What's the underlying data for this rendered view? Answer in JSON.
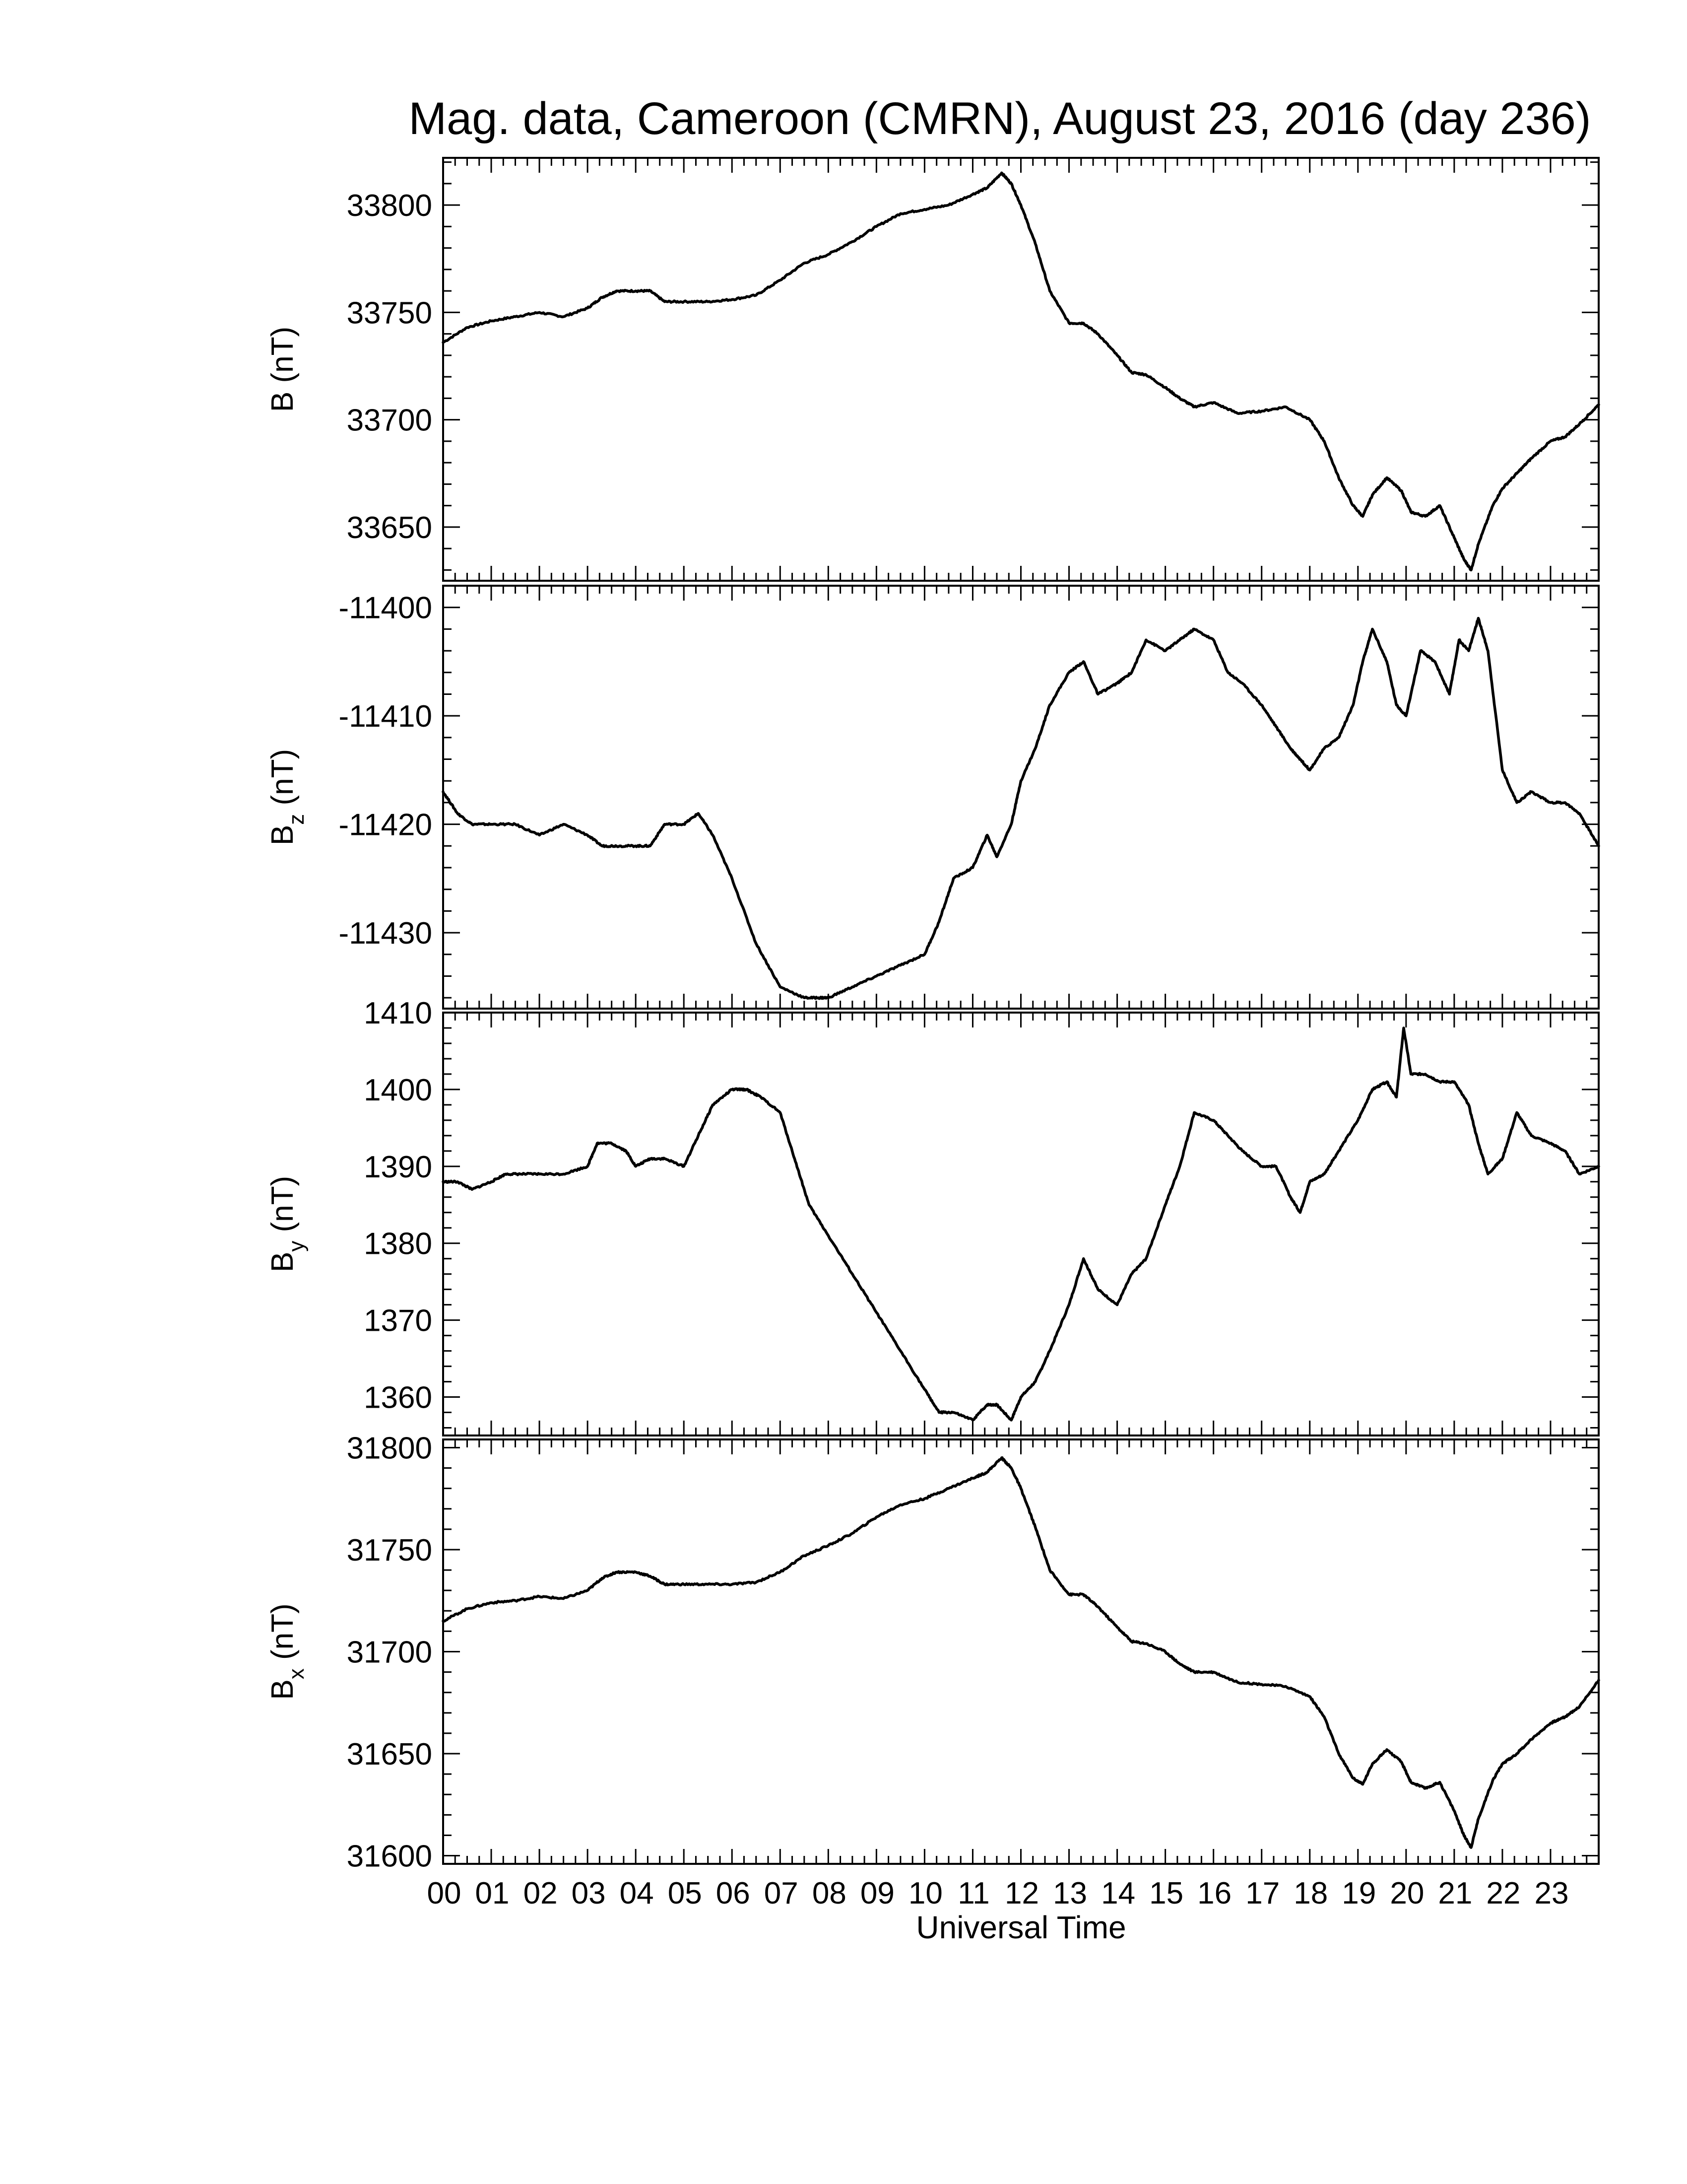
{
  "title": "Mag. data, Cameroon (CMRN), August 23, 2016 (day 236)",
  "xlabel": "Universal Time",
  "colors": {
    "line": "#000000",
    "background": "#ffffff"
  },
  "chart_data": [
    {
      "type": "line",
      "ylabel": "B (nT)",
      "ylabel_main": "B (nT)",
      "ylabel_sub": "",
      "ylim": [
        33625,
        33822
      ],
      "yticks": [
        33650,
        33700,
        33750,
        33800
      ],
      "xlim": [
        0,
        24
      ],
      "x": [
        0,
        0.5,
        1,
        1.5,
        2,
        2.5,
        3,
        3.3,
        3.6,
        4,
        4.3,
        4.6,
        5,
        5.5,
        6,
        6.5,
        7,
        7.5,
        8,
        8.5,
        9,
        9.5,
        10,
        10.5,
        11,
        11.3,
        11.6,
        11.8,
        12,
        12.3,
        12.6,
        13,
        13.3,
        13.6,
        14,
        14.3,
        14.6,
        15,
        15.3,
        15.6,
        16,
        16.5,
        17,
        17.5,
        18,
        18.3,
        18.6,
        18.9,
        19.1,
        19.3,
        19.6,
        19.9,
        20.1,
        20.4,
        20.7,
        21,
        21.2,
        21.35,
        21.5,
        21.8,
        22,
        22.3,
        22.6,
        23,
        23.3,
        23.6,
        24
      ],
      "values": [
        33736,
        33743,
        33746,
        33748,
        33750,
        33748,
        33752,
        33757,
        33760,
        33760,
        33760,
        33755,
        33755,
        33755,
        33756,
        33758,
        33765,
        33773,
        33777,
        33783,
        33790,
        33796,
        33798,
        33800,
        33805,
        33808,
        33815,
        33810,
        33800,
        33782,
        33760,
        33745,
        33745,
        33740,
        33730,
        33722,
        33721,
        33715,
        33710,
        33706,
        33708,
        33703,
        33704,
        33706,
        33700,
        33690,
        33673,
        33660,
        33655,
        33665,
        33673,
        33667,
        33657,
        33655,
        33660,
        33645,
        33635,
        33630,
        33642,
        33660,
        33668,
        33675,
        33682,
        33690,
        33692,
        33698,
        33707
      ]
    },
    {
      "type": "line",
      "ylabel": "Bz (nT)",
      "ylabel_main": "B",
      "ylabel_sub": "z",
      "ylim": [
        -11437,
        -11398
      ],
      "yticks": [
        -11400,
        -11410,
        -11420,
        -11430
      ],
      "yticks_suffix_label": "11410",
      "xlim": [
        0,
        24
      ],
      "x": [
        0,
        0.3,
        0.6,
        1,
        1.5,
        2,
        2.5,
        3,
        3.3,
        3.6,
        4,
        4.3,
        4.6,
        5,
        5.3,
        5.6,
        6,
        6.5,
        7,
        7.5,
        7.8,
        8,
        8.5,
        9,
        9.5,
        10,
        10.3,
        10.6,
        11,
        11.3,
        11.5,
        11.8,
        12,
        12.3,
        12.6,
        13,
        13.3,
        13.6,
        14,
        14.3,
        14.6,
        15,
        15.3,
        15.6,
        16,
        16.3,
        16.6,
        17,
        17.3,
        17.6,
        17.8,
        18,
        18.3,
        18.6,
        18.9,
        19.1,
        19.3,
        19.6,
        19.8,
        20,
        20.3,
        20.6,
        20.9,
        21.1,
        21.3,
        21.5,
        21.7,
        22,
        22.3,
        22.6,
        23,
        23.3,
        23.6,
        24
      ],
      "values": [
        -11417,
        -11419,
        -11420,
        -11420,
        -11420,
        -11421,
        -11420,
        -11421,
        -11422,
        -11422,
        -11422,
        -11422,
        -11420,
        -11420,
        -11419,
        -11421,
        -11425,
        -11431,
        -11435,
        -11436,
        -11436,
        -11436,
        -11435,
        -11434,
        -11433,
        -11432,
        -11429,
        -11425,
        -11424,
        -11421,
        -11423,
        -11420,
        -11416,
        -11413,
        -11409,
        -11406,
        -11405,
        -11408,
        -11407,
        -11406,
        -11403,
        -11404,
        -11403,
        -11402,
        -11403,
        -11406,
        -11407,
        -11409,
        -11411,
        -11413,
        -11414,
        -11415,
        -11413,
        -11412,
        -11409,
        -11405,
        -11402,
        -11405,
        -11409,
        -11410,
        -11404,
        -11405,
        -11408,
        -11403,
        -11404,
        -11401,
        -11404,
        -11415,
        -11418,
        -11417,
        -11418,
        -11418,
        -11419,
        -11422
      ]
    },
    {
      "type": "line",
      "ylabel": "By (nT)",
      "ylabel_main": "B",
      "ylabel_sub": "y",
      "ylim": [
        1355,
        1410
      ],
      "yticks": [
        1360,
        1370,
        1380,
        1390,
        1400,
        1410
      ],
      "xlim": [
        0,
        24
      ],
      "x": [
        0,
        0.3,
        0.6,
        1,
        1.3,
        1.6,
        2,
        2.5,
        3,
        3.2,
        3.5,
        3.8,
        4,
        4.3,
        4.6,
        5,
        5.3,
        5.6,
        6,
        6.3,
        6.6,
        7,
        7.3,
        7.6,
        8,
        8.5,
        9,
        9.5,
        10,
        10.3,
        10.6,
        11,
        11.3,
        11.5,
        11.8,
        12,
        12.3,
        12.6,
        13,
        13.3,
        13.6,
        14,
        14.3,
        14.6,
        15,
        15.3,
        15.6,
        16,
        16.3,
        16.6,
        17,
        17.3,
        17.6,
        17.8,
        18,
        18.3,
        18.6,
        19,
        19.3,
        19.6,
        19.8,
        19.95,
        20.1,
        20.4,
        20.7,
        21,
        21.3,
        21.5,
        21.7,
        22,
        22.3,
        22.6,
        23,
        23.3,
        23.6,
        24
      ],
      "values": [
        1388,
        1388,
        1387,
        1388,
        1389,
        1389,
        1389,
        1389,
        1390,
        1393,
        1393,
        1392,
        1390,
        1391,
        1391,
        1390,
        1394,
        1398,
        1400,
        1400,
        1399,
        1397,
        1391,
        1385,
        1381,
        1376,
        1371,
        1366,
        1361,
        1358,
        1358,
        1357,
        1359,
        1359,
        1357,
        1360,
        1362,
        1366,
        1372,
        1378,
        1374,
        1372,
        1376,
        1378,
        1385,
        1390,
        1397,
        1396,
        1394,
        1392,
        1390,
        1390,
        1386,
        1384,
        1388,
        1389,
        1392,
        1396,
        1400,
        1401,
        1399,
        1408,
        1402,
        1402,
        1401,
        1401,
        1398,
        1393,
        1389,
        1391,
        1397,
        1394,
        1393,
        1392,
        1389,
        1390
      ]
    },
    {
      "type": "line",
      "ylabel": "Bx (nT)",
      "ylabel_main": "B",
      "ylabel_sub": "x",
      "ylim": [
        31596,
        31804
      ],
      "yticks": [
        31600,
        31650,
        31700,
        31750,
        31800
      ],
      "xlim": [
        0,
        24
      ],
      "x": [
        0,
        0.5,
        1,
        1.5,
        2,
        2.5,
        3,
        3.3,
        3.6,
        4,
        4.3,
        4.6,
        5,
        5.5,
        6,
        6.5,
        7,
        7.5,
        8,
        8.5,
        9,
        9.5,
        10,
        10.5,
        11,
        11.3,
        11.6,
        11.8,
        12,
        12.3,
        12.6,
        13,
        13.3,
        13.6,
        14,
        14.3,
        14.6,
        15,
        15.3,
        15.6,
        16,
        16.5,
        17,
        17.5,
        18,
        18.3,
        18.6,
        18.9,
        19.1,
        19.3,
        19.6,
        19.9,
        20.1,
        20.4,
        20.7,
        21,
        21.2,
        21.35,
        21.5,
        21.8,
        22,
        22.3,
        22.6,
        23,
        23.3,
        23.6,
        24
      ],
      "values": [
        31715,
        31721,
        31724,
        31725,
        31727,
        31726,
        31730,
        31736,
        31739,
        31739,
        31737,
        31733,
        31733,
        31733,
        31733,
        31734,
        31739,
        31747,
        31752,
        31758,
        31766,
        31772,
        31775,
        31780,
        31785,
        31788,
        31795,
        31790,
        31780,
        31761,
        31740,
        31728,
        31728,
        31722,
        31712,
        31705,
        31704,
        31700,
        31694,
        31690,
        31690,
        31685,
        31684,
        31683,
        31678,
        31668,
        31650,
        31638,
        31635,
        31645,
        31652,
        31646,
        31636,
        31633,
        31636,
        31622,
        31610,
        31604,
        31618,
        31637,
        31645,
        31650,
        31657,
        31665,
        31668,
        31673,
        31686
      ]
    }
  ],
  "xticks": [
    "00",
    "01",
    "02",
    "03",
    "04",
    "05",
    "06",
    "07",
    "08",
    "09",
    "10",
    "11",
    "12",
    "13",
    "14",
    "15",
    "16",
    "17",
    "18",
    "19",
    "20",
    "21",
    "22",
    "23"
  ],
  "visible_ytick_labels": [
    [
      "33650",
      "33700",
      "33750",
      "33800"
    ],
    [
      "-11400",
      "-11410",
      "-11420",
      "-11430",
      "-11410"
    ],
    [
      "1360",
      "1370",
      "1380",
      "1390",
      "1400",
      "1410"
    ],
    [
      "31600",
      "31650",
      "31700",
      "31750",
      "31800"
    ]
  ]
}
